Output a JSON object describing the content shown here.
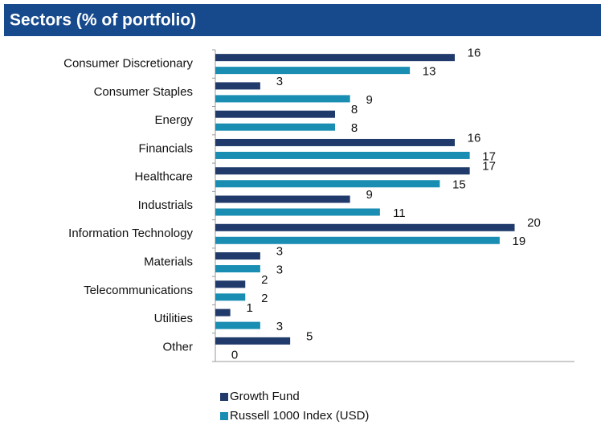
{
  "chart_data": {
    "type": "bar",
    "orientation": "horizontal",
    "title": "Sectors (% of portfolio)",
    "categories": [
      "Consumer Discretionary",
      "Consumer Staples",
      "Energy",
      "Financials",
      "Healthcare",
      "Industrials",
      "Information Technology",
      "Materials",
      "Telecommunications",
      "Utilities",
      "Other"
    ],
    "series": [
      {
        "name": "Growth Fund",
        "color": "#1f3a6b",
        "values": [
          16,
          3,
          8,
          16,
          17,
          9,
          20,
          3,
          2,
          1,
          5
        ]
      },
      {
        "name": "Russell 1000 Index (USD)",
        "color": "#1a8db3",
        "values": [
          13,
          9,
          8,
          17,
          15,
          11,
          19,
          3,
          2,
          3,
          0
        ]
      }
    ],
    "xlim": [
      0,
      24
    ],
    "legend": "bottom"
  }
}
